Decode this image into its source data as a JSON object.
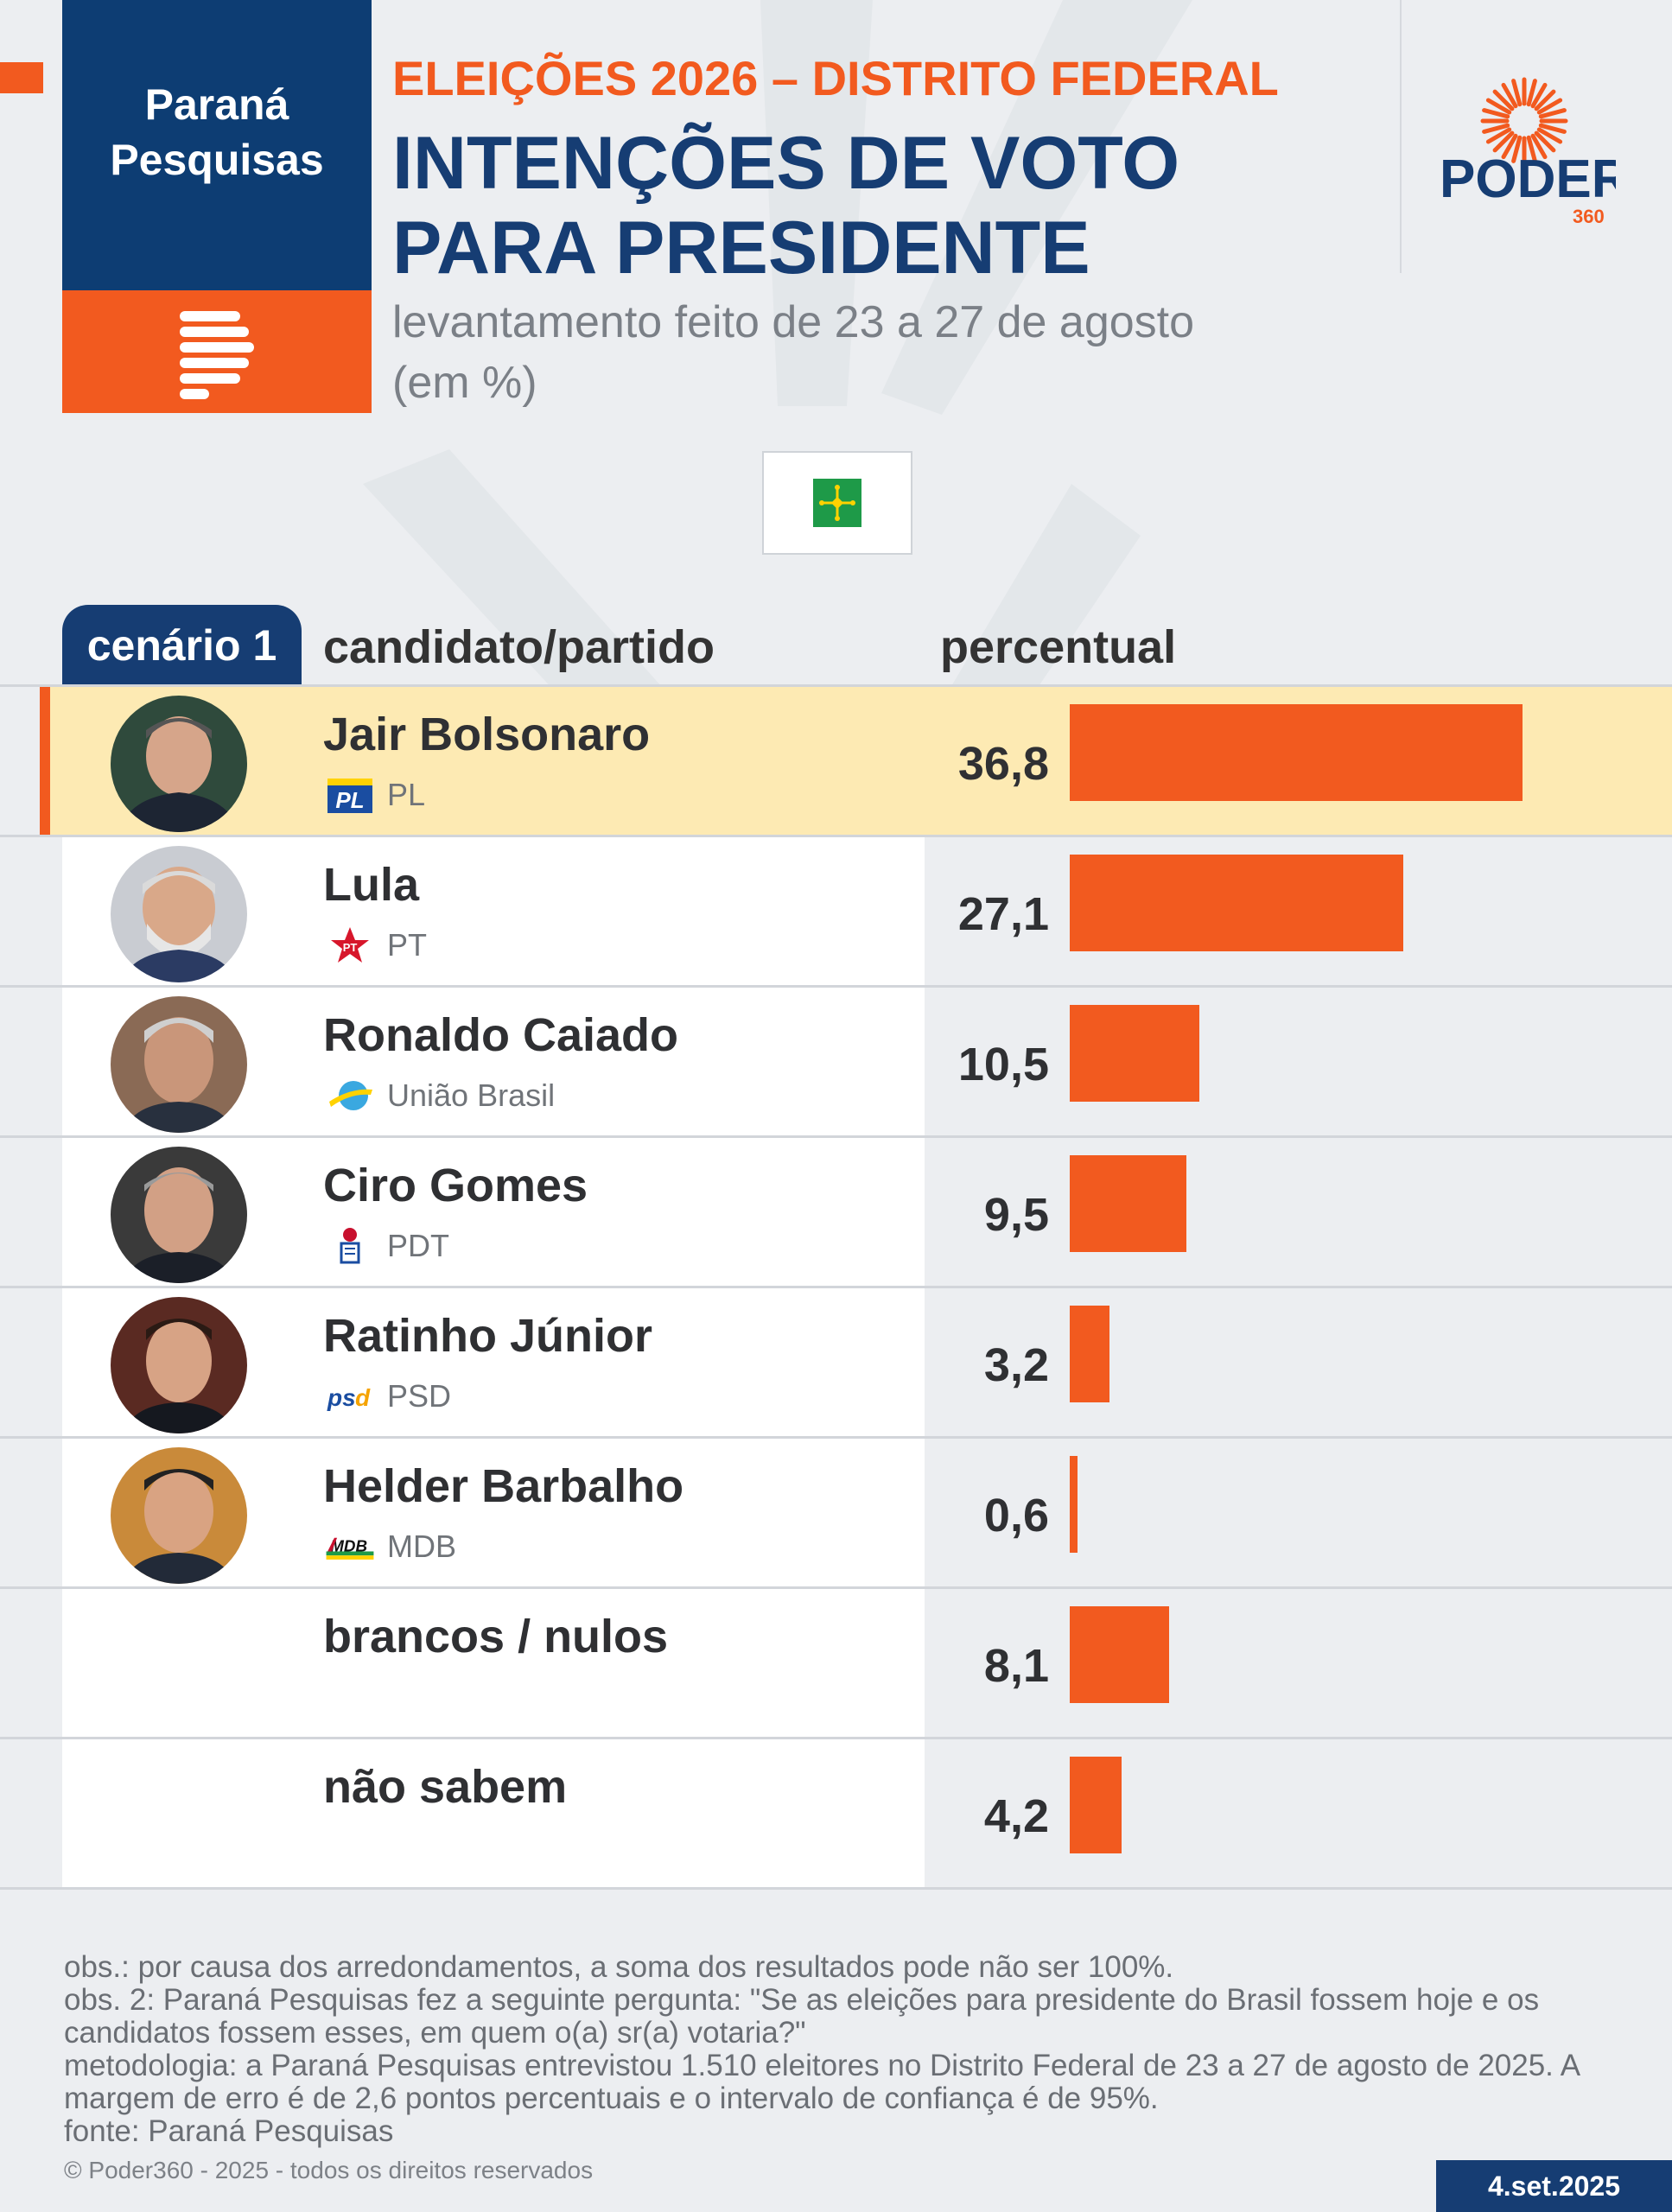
{
  "header": {
    "brand_left_line1": "Paraná",
    "brand_left_line2": "Pesquisas",
    "kicker": "ELEIÇÕES 2026 – DISTRITO FEDERAL",
    "title_line1": "INTENÇÕES DE VOTO",
    "title_line2": "PARA PRESIDENTE",
    "subtitle_line1": "levantamento feito de 23 a 27 de agosto",
    "subtitle_line2": "(em %)",
    "brand_right": "PODER",
    "brand_right_sub": "360"
  },
  "table": {
    "tab_label": "cenário 1",
    "col_candidate": "candidato/partido",
    "col_percent": "percentual"
  },
  "chart_data": {
    "type": "bar",
    "orientation": "horizontal",
    "categories": [
      "Jair Bolsonaro",
      "Lula",
      "Ronaldo Caiado",
      "Ciro Gomes",
      "Ratinho Júnior",
      "Helder Barbalho",
      "brancos / nulos",
      "não sabem"
    ],
    "values": [
      36.8,
      27.1,
      10.5,
      9.5,
      3.2,
      0.6,
      8.1,
      4.2
    ],
    "value_labels": [
      "36,8",
      "27,1",
      "10,5",
      "9,5",
      "3,2",
      "0,6",
      "8,1",
      "4,2"
    ],
    "parties": [
      "PL",
      "PT",
      "União Brasil",
      "PDT",
      "PSD",
      "MDB",
      "",
      ""
    ],
    "xlim": [
      0,
      40
    ],
    "bar_color": "#f25a1f",
    "highlight_color": "#fdeab3",
    "highlight_index": 0,
    "grid": false,
    "legend": "none"
  },
  "party_icons": [
    "pl-logo-icon",
    "pt-star-icon",
    "uniao-brasil-logo-icon",
    "pdt-logo-icon",
    "psd-logo-icon",
    "mdb-logo-icon"
  ],
  "footer": {
    "note1": "obs.: por causa dos arredondamentos, a soma dos resultados pode não ser 100%.",
    "note2": "obs. 2: Paraná Pesquisas fez a seguinte pergunta: \"Se as eleições para presidente do Brasil fossem hoje e os candidatos fossem esses, em quem o(a) sr(a) votaria?\"",
    "note3": "metodologia: a Paraná Pesquisas entrevistou 1.510 eleitores no Distrito Federal de 23 a 27 de agosto de 2025. A margem de erro é de 2,6 pontos percentuais e o intervalo de confiança é de 95%.",
    "note4": "fonte: Paraná Pesquisas",
    "copyright": "© Poder360 - 2025 - todos os direitos reservados",
    "date": "4.set.2025"
  },
  "colors": {
    "navy": "#163d73",
    "orange": "#f25a1f",
    "flag_green": "#1e9a48",
    "flag_yellow": "#ffd200"
  }
}
